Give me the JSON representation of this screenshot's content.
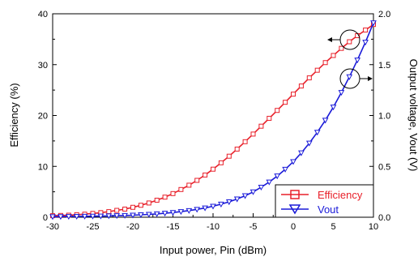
{
  "chart_data": {
    "type": "line",
    "title": "",
    "xlabel": "Input power, Pin (dBm)",
    "ylabel_left": "Efficiency (%)",
    "ylabel_right": "Output voltage, Vout (V)",
    "xlim": [
      -30,
      10
    ],
    "ylim_left": [
      0,
      40
    ],
    "ylim_right": [
      0,
      2.0
    ],
    "x_ticks": [
      "-30",
      "-25",
      "-20",
      "-15",
      "-10",
      "-5",
      "0",
      "5",
      "10"
    ],
    "y_left_ticks": [
      "0",
      "10",
      "20",
      "30",
      "40"
    ],
    "y_right_ticks": [
      "0.0",
      "0.5",
      "1.0",
      "1.5",
      "2.0"
    ],
    "grid": false,
    "legend_position": "bottom-right",
    "series": [
      {
        "name": "Efficiency",
        "axis": "left",
        "color": "#e8202a",
        "marker": "square",
        "x": [
          -30,
          -29,
          -28,
          -27,
          -26,
          -25,
          -24,
          -23,
          -22,
          -21,
          -20,
          -19,
          -18,
          -17,
          -16,
          -15,
          -14,
          -13,
          -12,
          -11,
          -10,
          -9,
          -8,
          -7,
          -6,
          -5,
          -4,
          -3,
          -2,
          -1,
          0,
          1,
          2,
          3,
          4,
          5,
          6,
          7,
          8,
          9,
          10
        ],
        "y": [
          0.3,
          0.35,
          0.4,
          0.5,
          0.6,
          0.75,
          0.9,
          1.1,
          1.35,
          1.6,
          1.95,
          2.35,
          2.8,
          3.35,
          3.95,
          4.65,
          5.45,
          6.3,
          7.25,
          8.3,
          9.45,
          10.7,
          12.0,
          13.4,
          14.85,
          16.35,
          17.9,
          19.45,
          21.0,
          22.6,
          24.2,
          25.8,
          27.4,
          28.9,
          30.4,
          31.8,
          33.2,
          34.5,
          35.7,
          36.8,
          37.9
        ]
      },
      {
        "name": "Vout",
        "axis": "right",
        "color": "#1a1ad8",
        "marker": "triangle-down",
        "x": [
          -30,
          -29,
          -28,
          -27,
          -26,
          -25,
          -24,
          -23,
          -22,
          -21,
          -20,
          -19,
          -18,
          -17,
          -16,
          -15,
          -14,
          -13,
          -12,
          -11,
          -10,
          -9,
          -8,
          -7,
          -6,
          -5,
          -4,
          -3,
          -2,
          -1,
          0,
          1,
          2,
          3,
          4,
          5,
          6,
          7,
          8,
          9,
          10
        ],
        "y": [
          0.005,
          0.006,
          0.007,
          0.008,
          0.009,
          0.01,
          0.011,
          0.013,
          0.015,
          0.017,
          0.02,
          0.024,
          0.028,
          0.033,
          0.039,
          0.046,
          0.055,
          0.065,
          0.077,
          0.091,
          0.108,
          0.128,
          0.151,
          0.179,
          0.211,
          0.249,
          0.295,
          0.346,
          0.405,
          0.471,
          0.546,
          0.632,
          0.728,
          0.835,
          0.953,
          1.083,
          1.226,
          1.38,
          1.545,
          1.72,
          1.91
        ]
      }
    ],
    "legend": [
      "Efficiency",
      "Vout"
    ]
  }
}
